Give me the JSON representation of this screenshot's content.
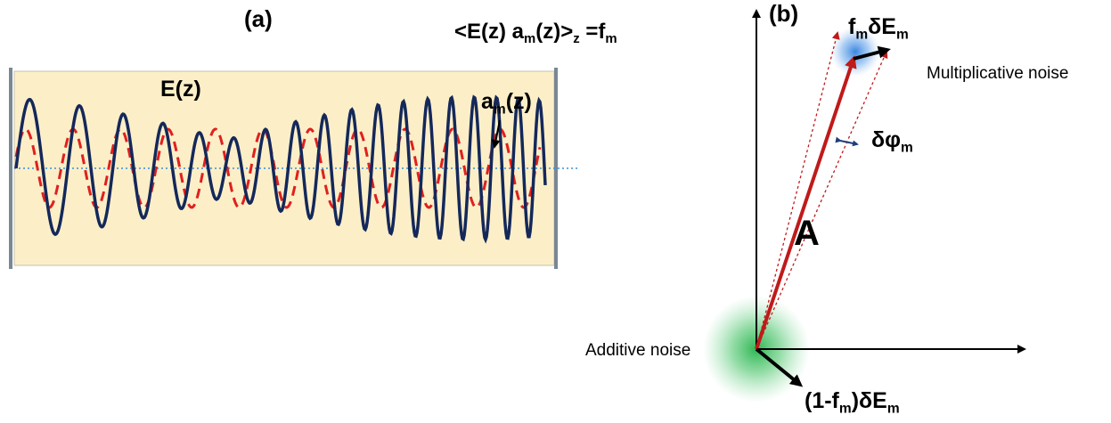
{
  "panel_a": {
    "label": "(a)",
    "equation": {
      "lhs_open": "<E(z) a",
      "sub_m1": "m",
      "mid": "(z)>",
      "sub_z": "z",
      "eq": " =f",
      "sub_m2": "m"
    },
    "field_label": "E(z)",
    "mode_label": {
      "base": "a",
      "sub": "m",
      "tail": "(z)"
    },
    "colors": {
      "box_fill": "#FCEFC8",
      "field": "#14285A",
      "mode": "#E0201E",
      "axis": "#3A8FD8",
      "mirror": "#7A8794"
    }
  },
  "panel_b": {
    "label": "(b)",
    "vector_label": "A",
    "multiplicative_label": {
      "base": "f",
      "sub": "m",
      "tail": "δE",
      "sub2": "m"
    },
    "multiplicative_noise": "Multiplicative noise",
    "additive_noise": "Additive noise",
    "phase_label": {
      "base": "δφ",
      "sub": "m"
    },
    "additive_vector_label": {
      "pre": "(1-f",
      "sub": "m",
      "mid": ")δE",
      "sub2": "m"
    },
    "colors": {
      "vector": "#C01A1A",
      "blue_glow": "#2F7FE0",
      "green_glow": "#22B24A",
      "arc": "#1F3F7A"
    }
  }
}
